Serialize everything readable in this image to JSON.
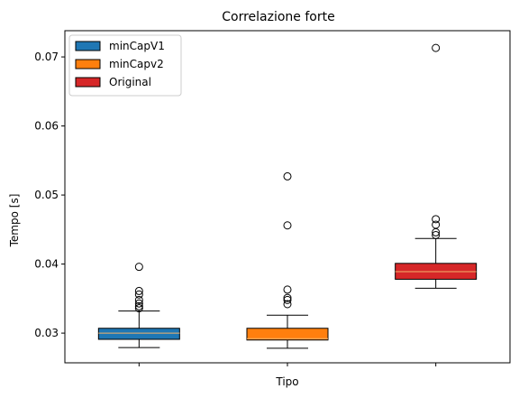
{
  "chart_data": {
    "type": "box",
    "title": "Correlazione forte",
    "xlabel": "Tipo",
    "ylabel": "Tempo [s]",
    "ylim": [
      0.0257,
      0.0738
    ],
    "yticks": [
      0.03,
      0.04,
      0.05,
      0.06,
      0.07
    ],
    "yticklabels": [
      "0.03",
      "0.04",
      "0.05",
      "0.06",
      "0.07"
    ],
    "legend_position": "upper-left",
    "median_color": "#f2b36b",
    "series": [
      {
        "name": "minCapV1",
        "color": "#1f77b4",
        "whisker_low": 0.0279,
        "q1": 0.0291,
        "median": 0.03,
        "q3": 0.0307,
        "whisker_high": 0.0332,
        "outliers": [
          0.0336,
          0.0339,
          0.0343,
          0.0348,
          0.0356,
          0.0361,
          0.0396
        ]
      },
      {
        "name": "minCapv2",
        "color": "#ff7f0e",
        "whisker_low": 0.0278,
        "q1": 0.029,
        "median": 0.0292,
        "q3": 0.0307,
        "whisker_high": 0.0326,
        "outliers": [
          0.0342,
          0.0348,
          0.0351,
          0.0363,
          0.0456,
          0.0527
        ]
      },
      {
        "name": "Original",
        "color": "#d62728",
        "whisker_low": 0.0365,
        "q1": 0.0378,
        "median": 0.0389,
        "q3": 0.0401,
        "whisker_high": 0.0437,
        "outliers": [
          0.0442,
          0.0446,
          0.0457,
          0.0465,
          0.0713
        ]
      }
    ]
  }
}
